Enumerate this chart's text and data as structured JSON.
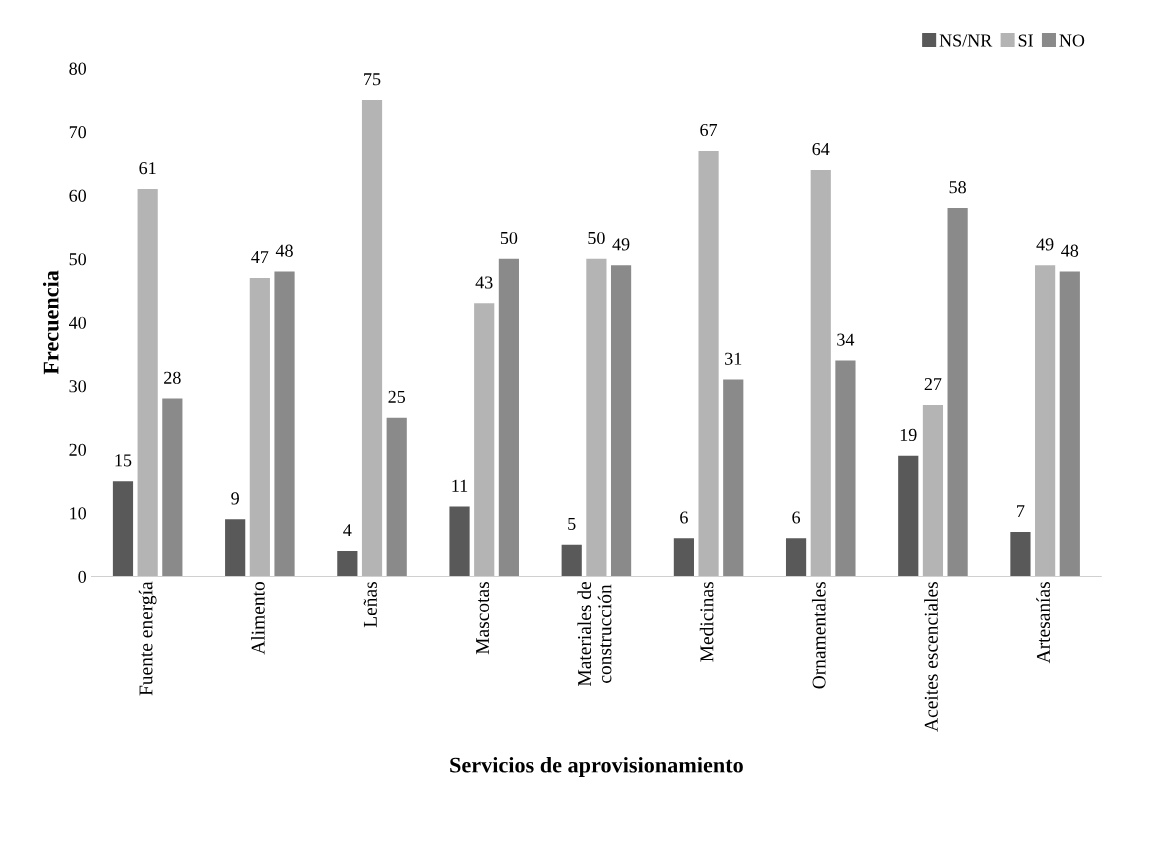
{
  "chart_data": {
    "type": "bar",
    "xlabel": "Servicios de aprovisionamiento",
    "ylabel": "Frecuencia",
    "categories": [
      "Fuente energía",
      "Alimento",
      "Leñas",
      "Mascotas",
      "Materiales de\nconstrucción",
      "Medicinas",
      "Ornamentales",
      "Aceites escenciales",
      "Artesanías"
    ],
    "series": [
      {
        "name": "NS/NR",
        "color": "#595959",
        "values": [
          15,
          9,
          4,
          11,
          5,
          6,
          6,
          19,
          7
        ]
      },
      {
        "name": "SI",
        "color": "#b4b4b4",
        "values": [
          61,
          47,
          75,
          43,
          50,
          67,
          64,
          27,
          49
        ]
      },
      {
        "name": "NO",
        "color": "#8a8a8a",
        "values": [
          28,
          48,
          25,
          50,
          49,
          31,
          34,
          58,
          48
        ]
      }
    ],
    "ylim": [
      0,
      80
    ],
    "yticks": [
      0,
      10,
      20,
      30,
      40,
      50,
      60,
      70,
      80
    ],
    "grid": false,
    "legend": "top right",
    "data_labels": true
  }
}
